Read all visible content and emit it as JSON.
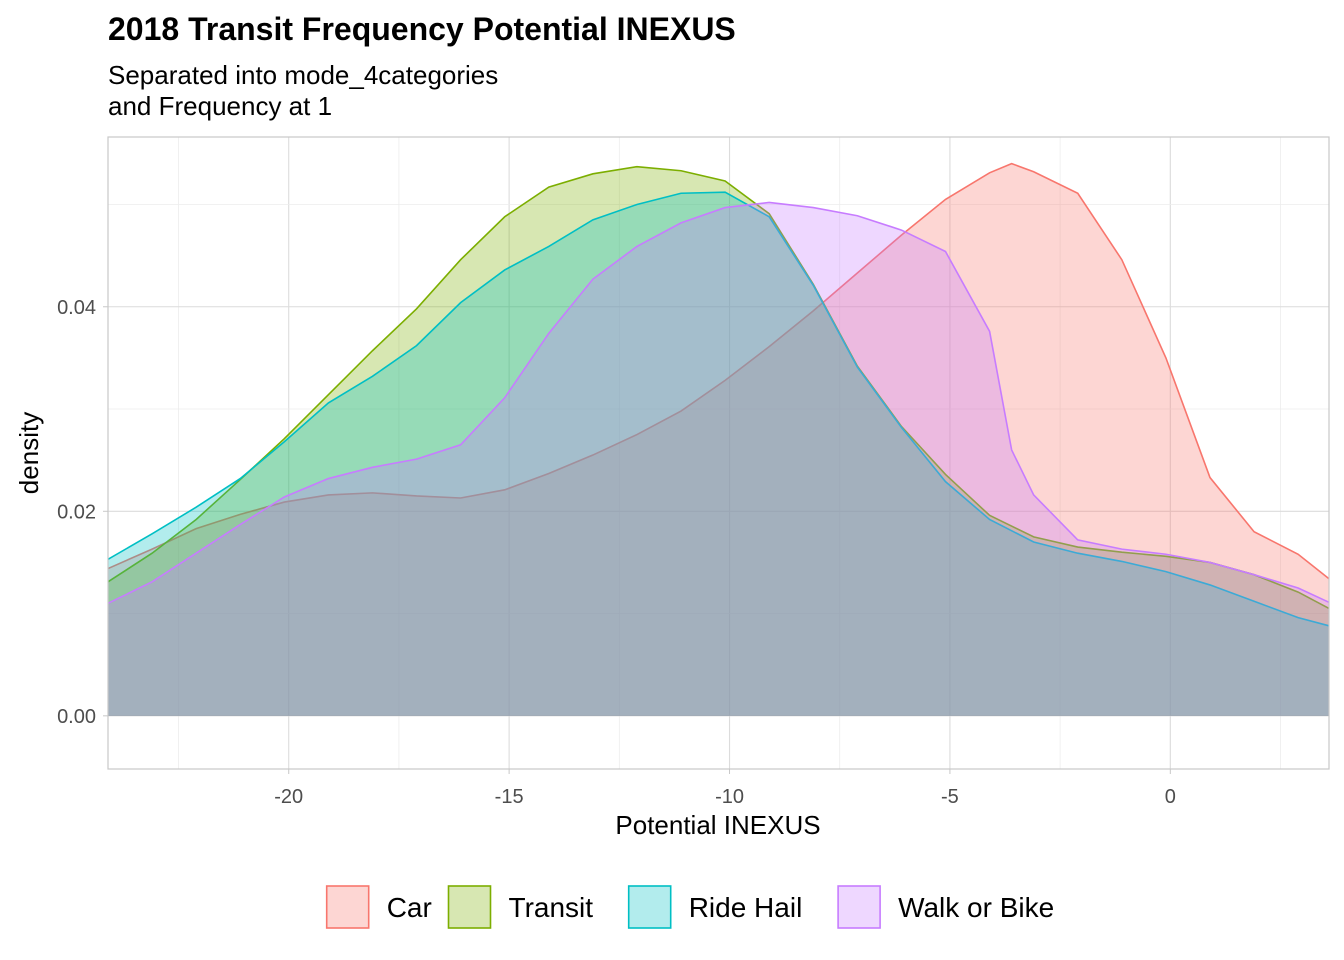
{
  "chart_data": {
    "type": "area",
    "title": "2018 Transit Frequency Potential INEXUS",
    "subtitle_lines": [
      "Separated into mode_4categories",
      "and Frequency at 1"
    ],
    "xlabel": "Potential INEXUS",
    "ylabel": "density",
    "xlim": [
      -24.1,
      3.6
    ],
    "ylim": [
      -0.0052,
      0.0566
    ],
    "x_ticks": [
      -20,
      -15,
      -10,
      -5,
      0
    ],
    "x_tick_labels": [
      "-20",
      "-15",
      "-10",
      "-5",
      "0"
    ],
    "y_ticks": [
      0.0,
      0.02,
      0.04
    ],
    "y_tick_labels": [
      "0.00",
      "0.02",
      "0.04"
    ],
    "grid": true,
    "legend_position": "bottom",
    "series": [
      {
        "name": "Car",
        "stroke": "#F8766D",
        "fill": "#F8766D",
        "points": [
          [
            -24.1,
            0.0144
          ],
          [
            -23.1,
            0.0163
          ],
          [
            -22.1,
            0.0183
          ],
          [
            -21.1,
            0.0197
          ],
          [
            -20.1,
            0.0209
          ],
          [
            -19.1,
            0.0216
          ],
          [
            -18.1,
            0.0218
          ],
          [
            -17.1,
            0.0215
          ],
          [
            -16.1,
            0.0213
          ],
          [
            -15.1,
            0.0221
          ],
          [
            -14.1,
            0.0237
          ],
          [
            -13.1,
            0.0255
          ],
          [
            -12.1,
            0.0275
          ],
          [
            -11.1,
            0.0298
          ],
          [
            -10.1,
            0.0328
          ],
          [
            -9.1,
            0.0361
          ],
          [
            -8.1,
            0.0396
          ],
          [
            -7.1,
            0.0433
          ],
          [
            -6.1,
            0.047
          ],
          [
            -5.1,
            0.0505
          ],
          [
            -4.1,
            0.0531
          ],
          [
            -3.6,
            0.054
          ],
          [
            -3.1,
            0.0532
          ],
          [
            -2.1,
            0.0511
          ],
          [
            -1.1,
            0.0446
          ],
          [
            -0.1,
            0.035
          ],
          [
            0.9,
            0.0233
          ],
          [
            1.9,
            0.018
          ],
          [
            2.9,
            0.0158
          ],
          [
            3.6,
            0.0134
          ]
        ]
      },
      {
        "name": "Transit",
        "stroke": "#7CAE00",
        "fill": "#7CAE00",
        "points": [
          [
            -24.1,
            0.0131
          ],
          [
            -23.1,
            0.0159
          ],
          [
            -22.1,
            0.0192
          ],
          [
            -21.1,
            0.0231
          ],
          [
            -20.1,
            0.0271
          ],
          [
            -19.1,
            0.0314
          ],
          [
            -18.1,
            0.0357
          ],
          [
            -17.1,
            0.0398
          ],
          [
            -16.1,
            0.0446
          ],
          [
            -15.1,
            0.0488
          ],
          [
            -14.1,
            0.0517
          ],
          [
            -13.1,
            0.053
          ],
          [
            -12.1,
            0.0537
          ],
          [
            -11.1,
            0.0533
          ],
          [
            -10.1,
            0.0523
          ],
          [
            -9.1,
            0.0491
          ],
          [
            -8.1,
            0.0422
          ],
          [
            -7.1,
            0.0342
          ],
          [
            -6.1,
            0.0283
          ],
          [
            -5.1,
            0.0236
          ],
          [
            -4.1,
            0.0196
          ],
          [
            -3.1,
            0.0175
          ],
          [
            -2.1,
            0.0165
          ],
          [
            -1.1,
            0.016
          ],
          [
            -0.1,
            0.0156
          ],
          [
            0.9,
            0.015
          ],
          [
            1.9,
            0.0138
          ],
          [
            2.9,
            0.0121
          ],
          [
            3.6,
            0.0105
          ]
        ]
      },
      {
        "name": "Ride Hail",
        "stroke": "#00BFC4",
        "fill": "#00BFC4",
        "points": [
          [
            -24.1,
            0.0153
          ],
          [
            -23.1,
            0.0178
          ],
          [
            -22.1,
            0.0204
          ],
          [
            -21.1,
            0.0232
          ],
          [
            -20.1,
            0.0268
          ],
          [
            -19.1,
            0.0306
          ],
          [
            -18.1,
            0.0332
          ],
          [
            -17.1,
            0.0362
          ],
          [
            -16.1,
            0.0404
          ],
          [
            -15.1,
            0.0436
          ],
          [
            -14.1,
            0.0459
          ],
          [
            -13.1,
            0.0485
          ],
          [
            -12.1,
            0.05
          ],
          [
            -11.1,
            0.0511
          ],
          [
            -10.1,
            0.0512
          ],
          [
            -9.1,
            0.0488
          ],
          [
            -8.1,
            0.0421
          ],
          [
            -7.1,
            0.0341
          ],
          [
            -6.1,
            0.0282
          ],
          [
            -5.1,
            0.0229
          ],
          [
            -4.1,
            0.0192
          ],
          [
            -3.1,
            0.017
          ],
          [
            -2.1,
            0.0159
          ],
          [
            -1.1,
            0.0151
          ],
          [
            -0.1,
            0.0141
          ],
          [
            0.9,
            0.0128
          ],
          [
            1.9,
            0.0112
          ],
          [
            2.9,
            0.0096
          ],
          [
            3.6,
            0.0088
          ]
        ]
      },
      {
        "name": "Walk or Bike",
        "stroke": "#C77CFF",
        "fill": "#C77CFF",
        "points": [
          [
            -24.1,
            0.011
          ],
          [
            -23.1,
            0.0131
          ],
          [
            -22.1,
            0.0159
          ],
          [
            -21.1,
            0.0187
          ],
          [
            -20.1,
            0.0214
          ],
          [
            -19.1,
            0.0232
          ],
          [
            -18.1,
            0.0243
          ],
          [
            -17.1,
            0.0251
          ],
          [
            -16.1,
            0.0265
          ],
          [
            -15.1,
            0.0311
          ],
          [
            -14.1,
            0.0374
          ],
          [
            -13.1,
            0.0427
          ],
          [
            -12.1,
            0.0459
          ],
          [
            -11.1,
            0.0482
          ],
          [
            -10.1,
            0.0497
          ],
          [
            -9.1,
            0.0502
          ],
          [
            -8.1,
            0.0497
          ],
          [
            -7.1,
            0.0489
          ],
          [
            -6.1,
            0.0475
          ],
          [
            -5.1,
            0.0454
          ],
          [
            -4.1,
            0.0376
          ],
          [
            -3.6,
            0.026
          ],
          [
            -3.1,
            0.0216
          ],
          [
            -2.1,
            0.0172
          ],
          [
            -1.1,
            0.0163
          ],
          [
            -0.1,
            0.0158
          ],
          [
            0.9,
            0.015
          ],
          [
            1.9,
            0.0138
          ],
          [
            2.9,
            0.0125
          ],
          [
            3.6,
            0.0111
          ]
        ]
      }
    ]
  }
}
